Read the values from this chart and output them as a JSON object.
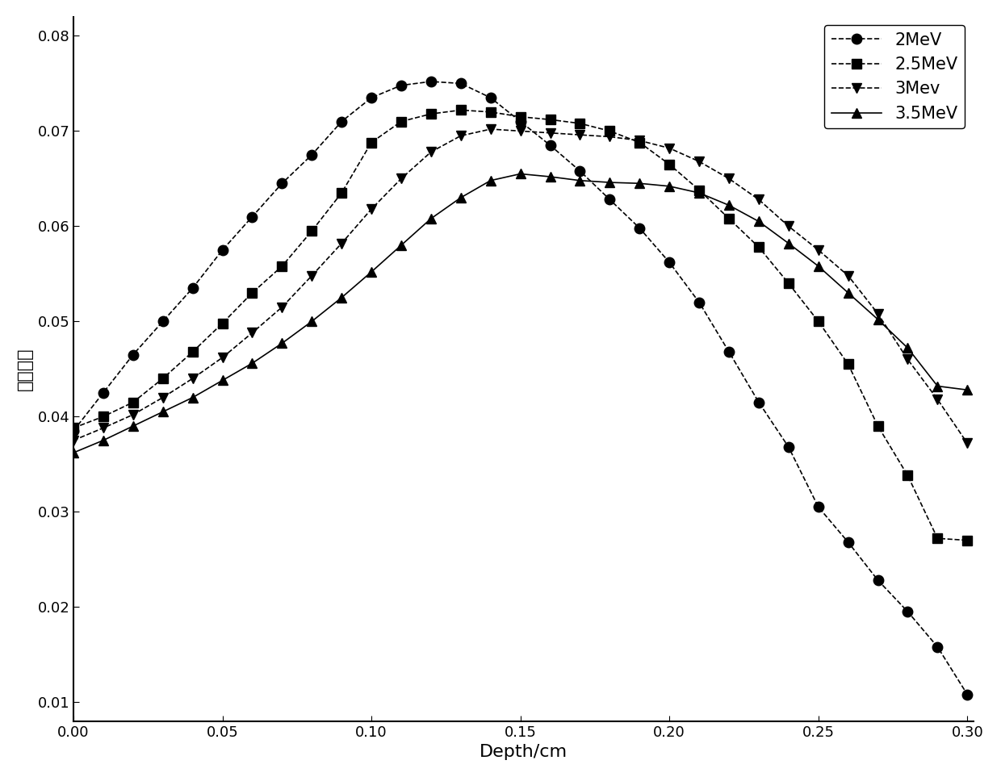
{
  "series": [
    {
      "label": "2MeV",
      "marker": "o",
      "color": "#000000",
      "linestyle": "--",
      "x": [
        0.0,
        0.01,
        0.02,
        0.03,
        0.04,
        0.05,
        0.06,
        0.07,
        0.08,
        0.09,
        0.1,
        0.11,
        0.12,
        0.13,
        0.14,
        0.15,
        0.16,
        0.17,
        0.18,
        0.19,
        0.2,
        0.21,
        0.22,
        0.23,
        0.24,
        0.25,
        0.26,
        0.27,
        0.28,
        0.29,
        0.3
      ],
      "y": [
        0.0385,
        0.0425,
        0.0465,
        0.05,
        0.0535,
        0.0575,
        0.061,
        0.0645,
        0.0675,
        0.071,
        0.0735,
        0.0748,
        0.0752,
        0.075,
        0.0735,
        0.071,
        0.0685,
        0.0658,
        0.0628,
        0.0598,
        0.0562,
        0.052,
        0.0468,
        0.0415,
        0.0368,
        0.0305,
        0.0268,
        0.0228,
        0.0195,
        0.0158,
        0.0108
      ]
    },
    {
      "label": "2.5MeV",
      "marker": "s",
      "color": "#000000",
      "linestyle": "--",
      "x": [
        0.0,
        0.01,
        0.02,
        0.03,
        0.04,
        0.05,
        0.06,
        0.07,
        0.08,
        0.09,
        0.1,
        0.11,
        0.12,
        0.13,
        0.14,
        0.15,
        0.16,
        0.17,
        0.18,
        0.19,
        0.2,
        0.21,
        0.22,
        0.23,
        0.24,
        0.25,
        0.26,
        0.27,
        0.28,
        0.29,
        0.3
      ],
      "y": [
        0.0388,
        0.04,
        0.0415,
        0.044,
        0.0468,
        0.0498,
        0.053,
        0.0558,
        0.0595,
        0.0635,
        0.0688,
        0.071,
        0.0718,
        0.0722,
        0.072,
        0.0715,
        0.0712,
        0.0708,
        0.07,
        0.0688,
        0.0665,
        0.0638,
        0.0608,
        0.0578,
        0.054,
        0.05,
        0.0455,
        0.039,
        0.0338,
        0.0272,
        0.027
      ]
    },
    {
      "label": "3Mev",
      "marker": "v",
      "color": "#000000",
      "linestyle": "--",
      "x": [
        0.0,
        0.01,
        0.02,
        0.03,
        0.04,
        0.05,
        0.06,
        0.07,
        0.08,
        0.09,
        0.1,
        0.11,
        0.12,
        0.13,
        0.14,
        0.15,
        0.16,
        0.17,
        0.18,
        0.19,
        0.2,
        0.21,
        0.22,
        0.23,
        0.24,
        0.25,
        0.26,
        0.27,
        0.28,
        0.29,
        0.3
      ],
      "y": [
        0.0375,
        0.0388,
        0.0402,
        0.042,
        0.044,
        0.0462,
        0.0488,
        0.0515,
        0.0548,
        0.0582,
        0.0618,
        0.065,
        0.0678,
        0.0695,
        0.0702,
        0.07,
        0.0698,
        0.0696,
        0.0694,
        0.069,
        0.0682,
        0.0668,
        0.065,
        0.0628,
        0.06,
        0.0575,
        0.0548,
        0.0508,
        0.046,
        0.0418,
        0.0372
      ]
    },
    {
      "label": "3.5MeV",
      "marker": "^",
      "color": "#000000",
      "linestyle": "-",
      "x": [
        0.0,
        0.01,
        0.02,
        0.03,
        0.04,
        0.05,
        0.06,
        0.07,
        0.08,
        0.09,
        0.1,
        0.11,
        0.12,
        0.13,
        0.14,
        0.15,
        0.16,
        0.17,
        0.18,
        0.19,
        0.2,
        0.21,
        0.22,
        0.23,
        0.24,
        0.25,
        0.26,
        0.27,
        0.28,
        0.29,
        0.3
      ],
      "y": [
        0.0362,
        0.0375,
        0.039,
        0.0405,
        0.042,
        0.0438,
        0.0456,
        0.0477,
        0.05,
        0.0525,
        0.0552,
        0.058,
        0.0608,
        0.063,
        0.0648,
        0.0655,
        0.0652,
        0.0648,
        0.0646,
        0.0645,
        0.0642,
        0.0635,
        0.0622,
        0.0605,
        0.0582,
        0.0558,
        0.053,
        0.0502,
        0.0472,
        0.0432,
        0.0428
      ]
    }
  ],
  "xlabel": "Depth/cm",
  "ylabel": "沉积能量",
  "xlim": [
    0.0,
    0.302
  ],
  "ylim": [
    0.008,
    0.082
  ],
  "xticks": [
    0.0,
    0.05,
    0.1,
    0.15,
    0.2,
    0.25,
    0.3
  ],
  "yticks": [
    0.01,
    0.02,
    0.03,
    0.04,
    0.05,
    0.06,
    0.07,
    0.08
  ],
  "legend_loc": "upper right",
  "marker_size": 9,
  "line_width": 1.2
}
